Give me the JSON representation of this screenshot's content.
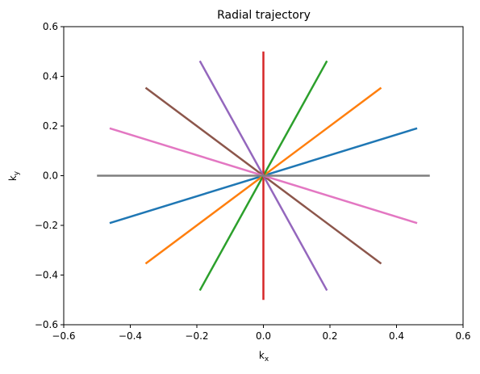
{
  "chart_data": {
    "type": "line",
    "title": "Radial trajectory",
    "xlabel": {
      "base": "k",
      "sub": "x"
    },
    "ylabel": {
      "base": "k",
      "sub": "y"
    },
    "xlim": [
      -0.6,
      0.6
    ],
    "ylim": [
      -0.6,
      0.6
    ],
    "xticks": [
      -0.6,
      -0.4,
      -0.2,
      0.0,
      0.2,
      0.4,
      0.6
    ],
    "yticks": [
      -0.6,
      -0.4,
      -0.2,
      0.0,
      0.2,
      0.4,
      0.6
    ],
    "xtick_labels": [
      "−0.6",
      "−0.4",
      "−0.2",
      "0.0",
      "0.2",
      "0.4",
      "0.6"
    ],
    "ytick_labels": [
      "−0.6",
      "−0.4",
      "−0.2",
      "0.0",
      "0.2",
      "0.4",
      "0.6"
    ],
    "grid": false,
    "series": [
      {
        "color": "#1f77b4",
        "x": [
          -0.462,
          0.462
        ],
        "y": [
          -0.191,
          0.191
        ]
      },
      {
        "color": "#ff7f0e",
        "x": [
          -0.354,
          0.354
        ],
        "y": [
          -0.354,
          0.354
        ]
      },
      {
        "color": "#2ca02c",
        "x": [
          -0.191,
          0.191
        ],
        "y": [
          -0.462,
          0.462
        ]
      },
      {
        "color": "#d62728",
        "x": [
          0.0,
          0.0
        ],
        "y": [
          -0.5,
          0.5
        ]
      },
      {
        "color": "#9467bd",
        "x": [
          -0.191,
          0.191
        ],
        "y": [
          0.462,
          -0.462
        ]
      },
      {
        "color": "#8c564b",
        "x": [
          -0.354,
          0.354
        ],
        "y": [
          0.354,
          -0.354
        ]
      },
      {
        "color": "#e377c2",
        "x": [
          -0.462,
          0.462
        ],
        "y": [
          0.191,
          -0.191
        ]
      },
      {
        "color": "#7f7f7f",
        "x": [
          -0.5,
          0.5
        ],
        "y": [
          0.0,
          0.0
        ]
      }
    ]
  }
}
